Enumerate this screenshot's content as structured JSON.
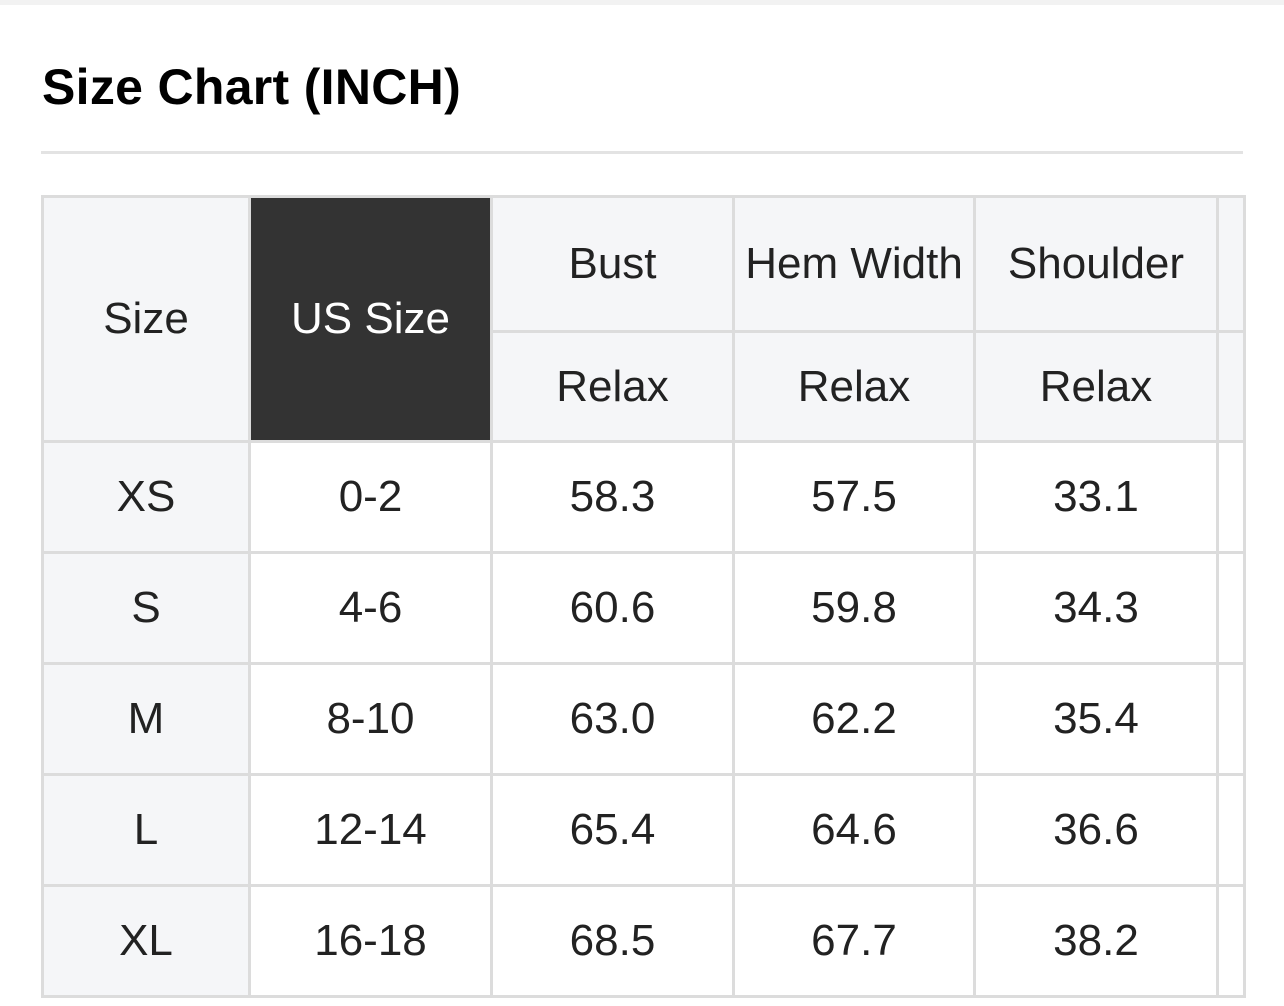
{
  "title": "Size Chart (INCH)",
  "headers": {
    "size": "Size",
    "us_size": "US Size",
    "bust": "Bust",
    "hem_width": "Hem Width",
    "shoulder": "Shoulder",
    "sub": [
      "Relax",
      "Relax",
      "Relax"
    ]
  },
  "rows": [
    {
      "size": "XS",
      "us": "0-2",
      "bust": "58.3",
      "hem": "57.5",
      "shoulder": "33.1"
    },
    {
      "size": "S",
      "us": "4-6",
      "bust": "60.6",
      "hem": "59.8",
      "shoulder": "34.3"
    },
    {
      "size": "M",
      "us": "8-10",
      "bust": "63.0",
      "hem": "62.2",
      "shoulder": "35.4"
    },
    {
      "size": "L",
      "us": "12-14",
      "bust": "65.4",
      "hem": "64.6",
      "shoulder": "36.6"
    },
    {
      "size": "XL",
      "us": "16-18",
      "bust": "68.5",
      "hem": "67.7",
      "shoulder": "38.2"
    }
  ],
  "colors": {
    "highlight_header": "#333333",
    "header_bg": "#f5f6f8",
    "border": "#dcdcdc"
  }
}
